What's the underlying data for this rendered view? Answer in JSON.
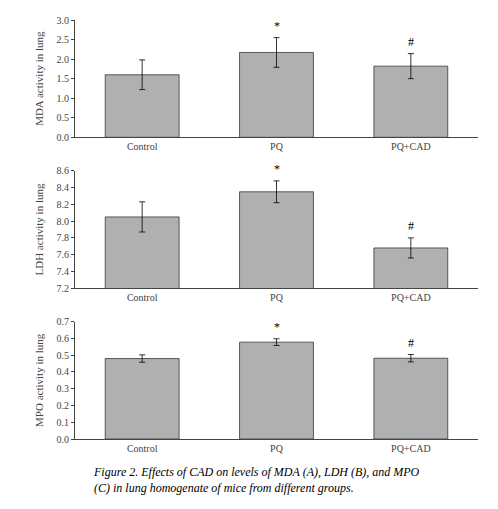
{
  "chart_data": [
    {
      "type": "bar",
      "categories": [
        "Control",
        "PQ",
        "PQ+CAD"
      ],
      "values": [
        1.6,
        2.17,
        1.82
      ],
      "errors": [
        0.38,
        0.38,
        0.32
      ],
      "ylabel": "MDA activity in lung",
      "ylim": [
        0,
        3
      ],
      "yticks": [
        {
          "value": 0,
          "label": "0.0"
        },
        0.5,
        {
          "value": 1,
          "label": "1.0"
        },
        1.5,
        {
          "value": 2,
          "label": "2.0"
        },
        2.5,
        {
          "value": 3,
          "label": "3.0"
        }
      ],
      "annotations": [
        null,
        "*",
        "#"
      ],
      "color": "#b0b0b0",
      "grid": false
    },
    {
      "type": "bar",
      "categories": [
        "Control",
        "PQ",
        "PQ+CAD"
      ],
      "values": [
        8.05,
        8.35,
        7.68
      ],
      "errors": [
        0.18,
        0.13,
        0.12
      ],
      "ylabel": "LDH activity in lung",
      "ylim": [
        7.2,
        8.6
      ],
      "yticks": [
        7.2,
        7.4,
        7.6,
        7.8,
        {
          "value": 8,
          "label": "8.0"
        },
        8.2,
        8.4,
        8.6
      ],
      "annotations": [
        null,
        "*",
        "#"
      ],
      "color": "#b0b0b0",
      "grid": false
    },
    {
      "type": "bar",
      "categories": [
        "Control",
        "PQ",
        "PQ+CAD"
      ],
      "values": [
        0.48,
        0.578,
        0.482
      ],
      "errors": [
        0.022,
        0.02,
        0.022
      ],
      "ylabel": "MPO activity in lung",
      "ylim": [
        0,
        0.7
      ],
      "yticks": [
        {
          "value": 0,
          "label": "0.0"
        },
        0.1,
        0.2,
        0.3,
        0.4,
        0.5,
        0.6,
        0.7
      ],
      "annotations": [
        null,
        "*",
        "#"
      ],
      "color": "#b0b0b0",
      "grid": false
    }
  ],
  "caption": "Figure 2. Effects of CAD on levels of MDA (A), LDH (B), and MPO\n(C) in lung homogenate of mice from different groups."
}
